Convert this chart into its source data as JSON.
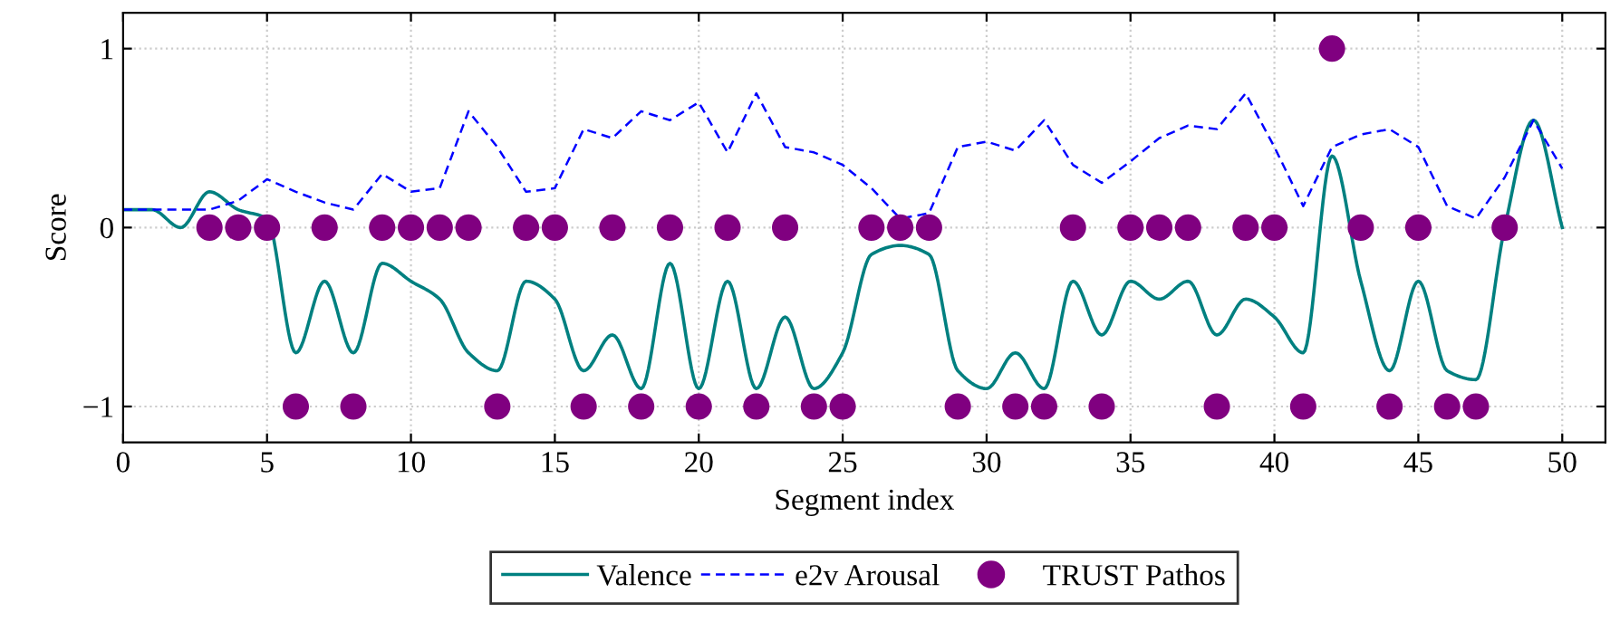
{
  "chart_data": {
    "type": "line",
    "xlabel": "Segment index",
    "ylabel": "Score",
    "xlim": [
      0,
      51.5
    ],
    "ylim": [
      -1.2,
      1.2
    ],
    "xticks": [
      0,
      5,
      10,
      15,
      20,
      25,
      30,
      35,
      40,
      45,
      50
    ],
    "yticks": [
      -1,
      0,
      1
    ],
    "grid": true,
    "legend": "bottom",
    "series": [
      {
        "name": "Valence",
        "color": "#008080",
        "line_style": "solid",
        "marker": "none",
        "x": [
          0,
          1,
          2,
          3,
          4,
          5,
          6,
          7,
          8,
          9,
          10,
          11,
          12,
          13,
          14,
          15,
          16,
          17,
          18,
          19,
          20,
          21,
          22,
          23,
          24,
          25,
          26,
          27,
          28,
          29,
          30,
          31,
          32,
          33,
          34,
          35,
          36,
          37,
          38,
          39,
          40,
          41,
          42,
          43,
          44,
          45,
          46,
          47,
          48,
          49,
          50
        ],
        "values": [
          0.1,
          0.1,
          0.0,
          0.2,
          0.1,
          0.05,
          -0.7,
          -0.3,
          -0.7,
          -0.2,
          -0.3,
          -0.4,
          -0.7,
          -0.8,
          -0.3,
          -0.4,
          -0.8,
          -0.6,
          -0.9,
          -0.2,
          -0.9,
          -0.3,
          -0.9,
          -0.5,
          -0.9,
          -0.7,
          -0.15,
          -0.1,
          -0.15,
          -0.8,
          -0.9,
          -0.7,
          -0.9,
          -0.3,
          -0.6,
          -0.3,
          -0.4,
          -0.3,
          -0.6,
          -0.4,
          -0.5,
          -0.7,
          0.4,
          -0.3,
          -0.8,
          -0.3,
          -0.8,
          -0.85,
          0.0,
          0.6,
          0.0
        ]
      },
      {
        "name": "e2v Arousal",
        "color": "#0000ff",
        "line_style": "dashed",
        "marker": "none",
        "x": [
          0,
          1,
          2,
          3,
          4,
          5,
          6,
          7,
          8,
          9,
          10,
          11,
          12,
          13,
          14,
          15,
          16,
          17,
          18,
          19,
          20,
          21,
          22,
          23,
          24,
          25,
          26,
          27,
          28,
          29,
          30,
          31,
          32,
          33,
          34,
          35,
          36,
          37,
          38,
          39,
          40,
          41,
          42,
          43,
          44,
          45,
          46,
          47,
          48,
          49,
          50
        ],
        "values": [
          0.1,
          0.1,
          0.1,
          0.1,
          0.15,
          0.27,
          0.2,
          0.14,
          0.1,
          0.3,
          0.2,
          0.22,
          0.65,
          0.45,
          0.2,
          0.22,
          0.55,
          0.5,
          0.65,
          0.6,
          0.7,
          0.42,
          0.75,
          0.45,
          0.42,
          0.35,
          0.22,
          0.05,
          0.08,
          0.45,
          0.48,
          0.43,
          0.6,
          0.35,
          0.25,
          0.37,
          0.5,
          0.57,
          0.55,
          0.75,
          0.45,
          0.12,
          0.45,
          0.52,
          0.55,
          0.45,
          0.12,
          0.05,
          0.28,
          0.6,
          0.33
        ]
      },
      {
        "name": "TRUST Pathos",
        "type": "scatter",
        "color": "#800080",
        "marker": "circle",
        "x": [
          3,
          4,
          5,
          6,
          7,
          8,
          9,
          10,
          11,
          12,
          13,
          14,
          15,
          16,
          17,
          18,
          19,
          20,
          21,
          22,
          23,
          24,
          25,
          26,
          27,
          28,
          29,
          31,
          32,
          33,
          34,
          35,
          36,
          37,
          38,
          39,
          40,
          41,
          42,
          43,
          44,
          45,
          46,
          47,
          48
        ],
        "values": [
          0,
          0,
          0,
          -1,
          0,
          -1,
          0,
          0,
          0,
          0,
          -1,
          0,
          0,
          -1,
          0,
          -1,
          0,
          -1,
          0,
          -1,
          0,
          -1,
          -1,
          0,
          0,
          0,
          -1,
          -1,
          -1,
          0,
          -1,
          0,
          0,
          0,
          -1,
          0,
          0,
          -1,
          1,
          0,
          -1,
          0,
          -1,
          -1,
          0
        ]
      }
    ]
  }
}
